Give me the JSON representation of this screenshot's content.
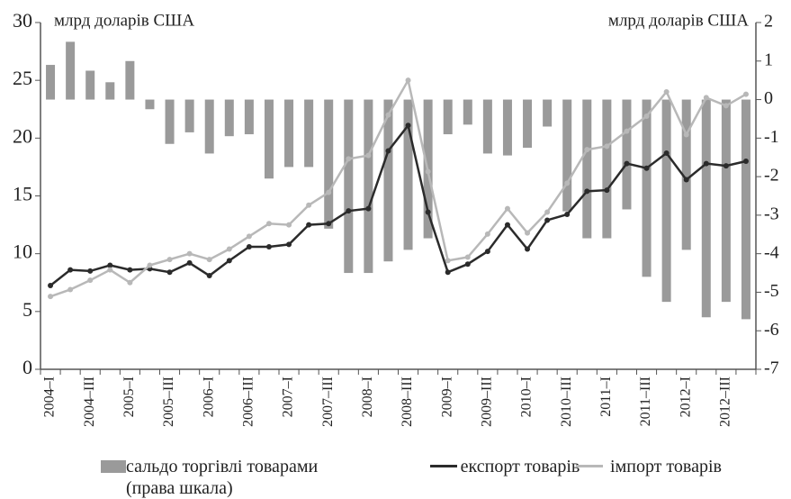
{
  "chart_data": {
    "type": "bar_line",
    "y_label": "млрд доларів США",
    "y2_label": "млрд доларів США",
    "categories": [
      "2004–I",
      null,
      "2004–III",
      null,
      "2005–I",
      null,
      "2005–III",
      null,
      "2006–I",
      null,
      "2006–III",
      null,
      "2007–I",
      null,
      "2007–III",
      null,
      "2008–I",
      null,
      "2008–III",
      null,
      "2009–I",
      null,
      "2009–III",
      null,
      "2010–I",
      null,
      "2010–III",
      null,
      "2011–I",
      null,
      "2011–III",
      null,
      "2012–I",
      null,
      "2012–III",
      null
    ],
    "series": [
      {
        "name": "сальдо торгівлі товарами (права шкала)",
        "type": "bar",
        "axis": "y2",
        "color": "#9a9a9a",
        "values": [
          0.9,
          1.5,
          0.75,
          0.45,
          1.0,
          -0.25,
          -1.15,
          -0.85,
          -1.4,
          -0.95,
          -0.9,
          -2.05,
          -1.75,
          -1.75,
          -3.35,
          -4.5,
          -4.5,
          -4.2,
          -3.9,
          -3.6,
          -0.9,
          -0.65,
          -1.4,
          -1.45,
          -1.25,
          -0.7,
          -2.9,
          -3.6,
          -3.6,
          -2.85,
          -4.6,
          -5.25,
          -3.9,
          -5.65,
          -5.25,
          -5.7
        ]
      },
      {
        "name": "експорт товарів",
        "type": "line",
        "color": "#2b2b2b",
        "values": [
          7.25,
          8.6,
          8.5,
          9.0,
          8.6,
          8.7,
          8.4,
          9.2,
          8.1,
          9.4,
          10.6,
          10.6,
          10.8,
          12.5,
          12.6,
          13.7,
          13.9,
          18.9,
          21.1,
          13.6,
          8.4,
          9.1,
          10.2,
          12.5,
          10.4,
          12.9,
          13.4,
          15.4,
          15.5,
          17.8,
          17.4,
          18.7,
          16.4,
          17.8,
          17.6,
          18.0
        ]
      },
      {
        "name": "імпорт товарів",
        "type": "line",
        "color": "#b8b8b8",
        "values": [
          6.3,
          6.9,
          7.7,
          8.6,
          7.5,
          9.0,
          9.5,
          10.0,
          9.5,
          10.4,
          11.5,
          12.6,
          12.5,
          14.2,
          15.3,
          18.2,
          18.5,
          22.0,
          25.0,
          17.1,
          9.4,
          9.7,
          11.7,
          13.9,
          11.8,
          13.6,
          16.1,
          19.0,
          19.3,
          20.6,
          21.9,
          24.0,
          20.3,
          23.5,
          22.8,
          23.8
        ]
      }
    ],
    "ylim": [
      0,
      30
    ],
    "yticks": [
      0,
      5,
      10,
      15,
      20,
      25,
      30
    ],
    "y2lim": [
      -7,
      2
    ],
    "y2ticks": [
      -7,
      -6,
      -5,
      -4,
      -3,
      -2,
      -1,
      0,
      1,
      2
    ]
  }
}
